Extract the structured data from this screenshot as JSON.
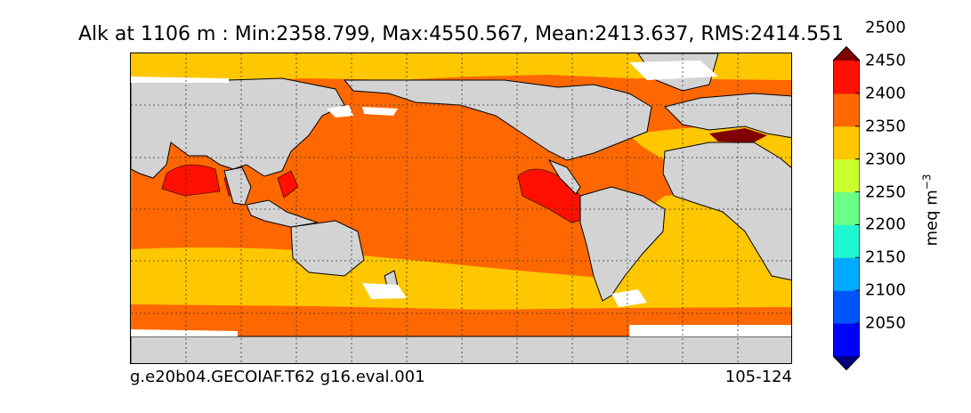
{
  "title": "Alk at 1106 m : Min:2358.799, Max:4550.567, Mean:2413.637, RMS:2414.551",
  "footer": {
    "case_name": "g.e20b04.GECOIAF.T62 g16.eval.001",
    "year_range": "105-124"
  },
  "colorbar": {
    "units_base": "meq m",
    "units_exp": "−3",
    "levels": [
      2050,
      2100,
      2150,
      2200,
      2250,
      2300,
      2350,
      2400,
      2450,
      2500
    ],
    "labels": [
      "2050",
      "2100",
      "2150",
      "2200",
      "2250",
      "2300",
      "2350",
      "2400",
      "2450",
      "2500"
    ],
    "colors": [
      "#00007f",
      "#0000ff",
      "#0055ff",
      "#00aaff",
      "#1ff7d1",
      "#6bff87",
      "#c9ff2c",
      "#ffc700",
      "#ff6800",
      "#ff1000",
      "#800000"
    ],
    "extend": "both"
  },
  "map": {
    "projection": "global lon-lat",
    "land_color": "#d3d3d3",
    "missing_color": "#ffffff",
    "gridlines": "dotted",
    "field": "Alk",
    "depth_m": 1106
  }
}
